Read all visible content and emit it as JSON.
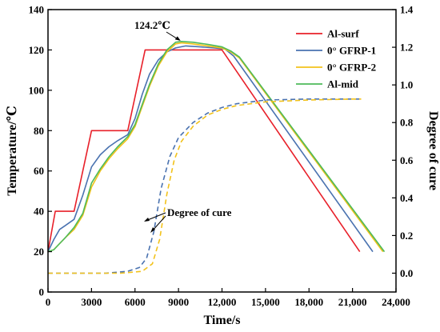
{
  "chart_data": {
    "type": "line",
    "xlabel": "Time/s",
    "ylabel": "Temperature/℃",
    "y2label": "Degree of cure",
    "xlim": [
      0,
      24000
    ],
    "ylim": [
      0,
      140
    ],
    "y2lim": [
      -0.1,
      1.4
    ],
    "x_ticks": [
      0,
      3000,
      6000,
      9000,
      12000,
      15000,
      18000,
      21000,
      24000
    ],
    "x_tick_labels": [
      "0",
      "3000",
      "6000",
      "9000",
      "12,000",
      "15,000",
      "18,000",
      "21,000",
      "24,000"
    ],
    "y_ticks": [
      0,
      20,
      40,
      60,
      80,
      100,
      120,
      140
    ],
    "y2_ticks": [
      0.0,
      0.2,
      0.4,
      0.6,
      0.8,
      1.0,
      1.2,
      1.4
    ],
    "y2_tick_labels": [
      "0.0",
      "0.2",
      "0.4",
      "0.6",
      "0.8",
      "1.0",
      "1.2",
      "1.4"
    ],
    "legend_position": "top-right",
    "series": [
      {
        "name": "Al-surf",
        "axis": "left",
        "color": "#e8202a",
        "style": "solid",
        "x": [
          0,
          500,
          1800,
          3000,
          5500,
          6700,
          12000,
          21500
        ],
        "y": [
          20,
          40,
          40,
          80,
          80,
          120,
          120,
          20
        ]
      },
      {
        "name": "0° GFRP-1",
        "axis": "left",
        "color": "#4a72b0",
        "style": "solid",
        "x": [
          0,
          400,
          800,
          1200,
          1800,
          2400,
          3000,
          3600,
          4200,
          4800,
          5500,
          6000,
          6500,
          7000,
          7600,
          8200,
          8800,
          9500,
          10500,
          11500,
          12200,
          12800,
          22400
        ],
        "y": [
          20,
          26,
          31,
          33,
          36,
          48,
          62,
          68,
          72,
          75,
          78,
          86,
          98,
          108,
          115,
          119,
          121,
          122,
          121.5,
          121,
          120.5,
          117,
          20
        ]
      },
      {
        "name": "0° GFRP-2",
        "axis": "left",
        "color": "#f2c21b",
        "style": "solid",
        "x": [
          0,
          400,
          800,
          1200,
          1800,
          2400,
          3000,
          3600,
          4200,
          4800,
          5500,
          6000,
          6500,
          7000,
          7600,
          8200,
          8800,
          9200,
          10000,
          11000,
          12000,
          12600,
          13200,
          23100
        ],
        "y": [
          20,
          21,
          24,
          27,
          31,
          38,
          52,
          60,
          66,
          71,
          76,
          82,
          92,
          102,
          112,
          119,
          123,
          123.5,
          123,
          122,
          121,
          119,
          116,
          20
        ]
      },
      {
        "name": "Al-mid",
        "axis": "left",
        "color": "#4dba5a",
        "style": "solid",
        "x": [
          0,
          400,
          800,
          1200,
          1800,
          2400,
          3000,
          3600,
          4200,
          4800,
          5500,
          6000,
          6500,
          7000,
          7600,
          8200,
          8800,
          9200,
          10000,
          11000,
          12000,
          12600,
          13200,
          23200
        ],
        "y": [
          20,
          21,
          24,
          27,
          32,
          39,
          54,
          61,
          67,
          72,
          77,
          83,
          93,
          103,
          113,
          120,
          123.8,
          124.2,
          123.8,
          122.8,
          121.5,
          119.5,
          116.5,
          20
        ]
      },
      {
        "axis": "right",
        "color": "#4a72b0",
        "style": "dashed",
        "x": [
          0,
          4000,
          5500,
          6300,
          6800,
          7300,
          7800,
          8400,
          9000,
          10000,
          11000,
          12000,
          13000,
          15000,
          18000,
          21000,
          21600
        ],
        "y": [
          0,
          0,
          0.01,
          0.03,
          0.08,
          0.22,
          0.45,
          0.62,
          0.72,
          0.8,
          0.85,
          0.88,
          0.9,
          0.92,
          0.925,
          0.925,
          0.925
        ]
      },
      {
        "axis": "right",
        "color": "#f2c21b",
        "style": "dashed",
        "x": [
          0,
          5000,
          6500,
          7200,
          7700,
          8200,
          8700,
          9200,
          10000,
          11000,
          12000,
          13000,
          15000,
          18000,
          21000,
          21600
        ],
        "y": [
          0,
          0,
          0.01,
          0.05,
          0.18,
          0.42,
          0.6,
          0.7,
          0.78,
          0.84,
          0.87,
          0.89,
          0.91,
          0.92,
          0.925,
          0.925
        ]
      }
    ],
    "annotations": [
      {
        "text": "124.2℃",
        "x": 9200,
        "y": 124.2
      },
      {
        "text": "Degree of cure",
        "x": 7200,
        "y": 0.32,
        "axis": "right"
      }
    ]
  }
}
